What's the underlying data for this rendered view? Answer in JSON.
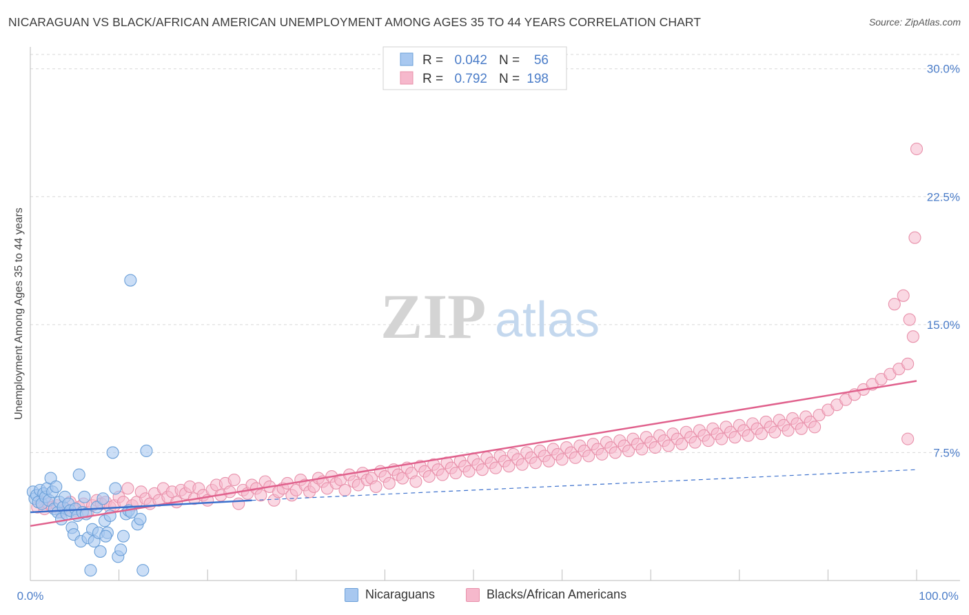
{
  "title": "NICARAGUAN VS BLACK/AFRICAN AMERICAN UNEMPLOYMENT AMONG AGES 35 TO 44 YEARS CORRELATION CHART",
  "source": "Source: ZipAtlas.com",
  "watermark": {
    "zip": "ZIP",
    "atlas": "atlas"
  },
  "colors": {
    "blue_fill": "#a8c8f0",
    "blue_stroke": "#6a9fd8",
    "blue_line": "#3a6fcc",
    "pink_fill": "#f6b8cc",
    "pink_stroke": "#e890aa",
    "pink_line": "#e0608c",
    "axis_label": "#4a7cc8",
    "grid": "#d8d8d8"
  },
  "legend": {
    "rows": [
      {
        "r_label": "R =",
        "r_value": "0.042",
        "n_label": "N =",
        "n_value": "56"
      },
      {
        "r_label": "R =",
        "r_value": "0.792",
        "n_label": "N =",
        "n_value": "198"
      }
    ]
  },
  "bottom_legend": [
    "Nicaraguans",
    "Blacks/African Americans"
  ],
  "chart_data": {
    "type": "scatter",
    "title": "NICARAGUAN VS BLACK/AFRICAN AMERICAN UNEMPLOYMENT AMONG AGES 35 TO 44 YEARS CORRELATION CHART",
    "xlabel": "",
    "ylabel": "Unemployment Among Ages 35 to 44 years",
    "xlim": [
      0,
      100
    ],
    "ylim": [
      0,
      31
    ],
    "x_tick_labels": [
      "0.0%",
      "100.0%"
    ],
    "y_ticks": [
      7.5,
      15.0,
      22.5,
      30.0
    ],
    "y_tick_labels": [
      "7.5%",
      "15.0%",
      "22.5%",
      "30.0%"
    ],
    "grid": true,
    "legend_position": "top-center",
    "series": [
      {
        "name": "Nicaraguans",
        "r": 0.042,
        "n": 56,
        "trend_solid": [
          [
            0,
            4.0
          ],
          [
            25,
            4.7
          ]
        ],
        "trend_dashed": [
          [
            25,
            4.7
          ],
          [
            100,
            6.5
          ]
        ],
        "points": [
          [
            0.3,
            5.2
          ],
          [
            0.5,
            4.8
          ],
          [
            0.7,
            5.0
          ],
          [
            0.9,
            4.6
          ],
          [
            1.1,
            5.3
          ],
          [
            1.3,
            4.5
          ],
          [
            1.5,
            5.1
          ],
          [
            1.7,
            4.9
          ],
          [
            1.9,
            5.4
          ],
          [
            2.1,
            4.7
          ],
          [
            2.3,
            6.0
          ],
          [
            2.5,
            5.2
          ],
          [
            2.7,
            4.2
          ],
          [
            2.9,
            5.5
          ],
          [
            3.1,
            4.0
          ],
          [
            3.3,
            4.6
          ],
          [
            3.5,
            3.6
          ],
          [
            3.7,
            4.3
          ],
          [
            3.9,
            4.9
          ],
          [
            4.1,
            3.9
          ],
          [
            4.3,
            4.5
          ],
          [
            4.5,
            4.1
          ],
          [
            4.7,
            3.1
          ],
          [
            4.9,
            2.7
          ],
          [
            5.1,
            4.2
          ],
          [
            5.3,
            3.8
          ],
          [
            5.5,
            6.2
          ],
          [
            5.7,
            2.3
          ],
          [
            5.9,
            4.0
          ],
          [
            6.1,
            4.9
          ],
          [
            6.3,
            3.9
          ],
          [
            6.5,
            2.5
          ],
          [
            6.8,
            0.6
          ],
          [
            7.0,
            3.0
          ],
          [
            7.2,
            2.3
          ],
          [
            7.5,
            4.3
          ],
          [
            7.7,
            2.8
          ],
          [
            7.9,
            1.7
          ],
          [
            8.2,
            4.8
          ],
          [
            8.4,
            3.5
          ],
          [
            8.7,
            2.8
          ],
          [
            9.0,
            3.8
          ],
          [
            9.3,
            7.5
          ],
          [
            9.6,
            5.4
          ],
          [
            9.9,
            1.4
          ],
          [
            10.2,
            1.8
          ],
          [
            10.5,
            2.6
          ],
          [
            10.8,
            3.9
          ],
          [
            11.1,
            4.1
          ],
          [
            11.4,
            4.0
          ],
          [
            12.1,
            3.3
          ],
          [
            12.4,
            3.6
          ],
          [
            12.7,
            0.6
          ],
          [
            13.1,
            7.6
          ],
          [
            11.3,
            17.6
          ],
          [
            8.5,
            2.6
          ]
        ]
      },
      {
        "name": "Blacks/African Americans",
        "r": 0.792,
        "n": 198,
        "trend": [
          [
            0,
            3.2
          ],
          [
            100,
            11.7
          ]
        ],
        "points": [
          [
            0.8,
            4.3
          ],
          [
            1.2,
            4.6
          ],
          [
            1.6,
            4.2
          ],
          [
            2.0,
            4.5
          ],
          [
            2.5,
            4.3
          ],
          [
            3.0,
            4.4
          ],
          [
            3.5,
            4.0
          ],
          [
            4.0,
            4.2
          ],
          [
            4.5,
            4.6
          ],
          [
            5.0,
            4.1
          ],
          [
            5.5,
            4.3
          ],
          [
            6.0,
            4.5
          ],
          [
            6.5,
            4.0
          ],
          [
            7.0,
            4.4
          ],
          [
            7.5,
            4.7
          ],
          [
            8.0,
            4.5
          ],
          [
            8.5,
            4.6
          ],
          [
            9.0,
            4.3
          ],
          [
            9.5,
            4.4
          ],
          [
            10.0,
            4.9
          ],
          [
            10.5,
            4.6
          ],
          [
            11.0,
            5.4
          ],
          [
            11.5,
            4.4
          ],
          [
            12.0,
            4.6
          ],
          [
            12.5,
            5.2
          ],
          [
            13.0,
            4.8
          ],
          [
            13.5,
            4.5
          ],
          [
            14.0,
            5.1
          ],
          [
            14.5,
            4.7
          ],
          [
            15.0,
            5.4
          ],
          [
            15.5,
            4.9
          ],
          [
            16.0,
            5.2
          ],
          [
            16.5,
            4.6
          ],
          [
            17.0,
            5.3
          ],
          [
            17.5,
            5.1
          ],
          [
            18.0,
            5.5
          ],
          [
            18.5,
            4.8
          ],
          [
            19.0,
            5.4
          ],
          [
            19.5,
            5.0
          ],
          [
            20.0,
            4.7
          ],
          [
            20.5,
            5.3
          ],
          [
            21.0,
            5.6
          ],
          [
            21.5,
            5.0
          ],
          [
            22.0,
            5.7
          ],
          [
            22.5,
            5.2
          ],
          [
            23.0,
            5.9
          ],
          [
            23.5,
            4.5
          ],
          [
            24.0,
            5.3
          ],
          [
            24.5,
            5.1
          ],
          [
            25.0,
            5.6
          ],
          [
            25.5,
            5.4
          ],
          [
            26.0,
            5.0
          ],
          [
            26.5,
            5.8
          ],
          [
            27.0,
            5.5
          ],
          [
            27.5,
            4.7
          ],
          [
            28.0,
            5.2
          ],
          [
            28.5,
            5.4
          ],
          [
            29.0,
            5.7
          ],
          [
            29.5,
            5.0
          ],
          [
            30.0,
            5.3
          ],
          [
            30.5,
            5.9
          ],
          [
            31.0,
            5.6
          ],
          [
            31.5,
            5.2
          ],
          [
            32.0,
            5.5
          ],
          [
            32.5,
            6.0
          ],
          [
            33.0,
            5.8
          ],
          [
            33.5,
            5.4
          ],
          [
            34.0,
            6.1
          ],
          [
            34.5,
            5.7
          ],
          [
            35.0,
            5.9
          ],
          [
            35.5,
            5.3
          ],
          [
            36.0,
            6.2
          ],
          [
            36.5,
            5.8
          ],
          [
            37.0,
            5.6
          ],
          [
            37.5,
            6.3
          ],
          [
            38.0,
            5.9
          ],
          [
            38.5,
            6.0
          ],
          [
            39.0,
            5.5
          ],
          [
            39.5,
            6.4
          ],
          [
            40.0,
            6.1
          ],
          [
            40.5,
            5.7
          ],
          [
            41.0,
            6.5
          ],
          [
            41.5,
            6.2
          ],
          [
            42.0,
            6.0
          ],
          [
            42.5,
            6.6
          ],
          [
            43.0,
            6.3
          ],
          [
            43.5,
            5.8
          ],
          [
            44.0,
            6.7
          ],
          [
            44.5,
            6.4
          ],
          [
            45.0,
            6.1
          ],
          [
            45.5,
            6.8
          ],
          [
            46.0,
            6.5
          ],
          [
            46.5,
            6.2
          ],
          [
            47.0,
            6.9
          ],
          [
            47.5,
            6.6
          ],
          [
            48.0,
            6.3
          ],
          [
            48.5,
            7.0
          ],
          [
            49.0,
            6.7
          ],
          [
            49.5,
            6.4
          ],
          [
            50.0,
            7.1
          ],
          [
            50.5,
            6.8
          ],
          [
            51.0,
            6.5
          ],
          [
            51.5,
            7.2
          ],
          [
            52.0,
            6.9
          ],
          [
            52.5,
            6.6
          ],
          [
            53.0,
            7.3
          ],
          [
            53.5,
            7.0
          ],
          [
            54.0,
            6.7
          ],
          [
            54.5,
            7.4
          ],
          [
            55.0,
            7.1
          ],
          [
            55.5,
            6.8
          ],
          [
            56.0,
            7.5
          ],
          [
            56.5,
            7.2
          ],
          [
            57.0,
            6.9
          ],
          [
            57.5,
            7.6
          ],
          [
            58.0,
            7.3
          ],
          [
            58.5,
            7.0
          ],
          [
            59.0,
            7.7
          ],
          [
            59.5,
            7.4
          ],
          [
            60.0,
            7.1
          ],
          [
            60.5,
            7.8
          ],
          [
            61.0,
            7.5
          ],
          [
            61.5,
            7.2
          ],
          [
            62.0,
            7.9
          ],
          [
            62.5,
            7.6
          ],
          [
            63.0,
            7.3
          ],
          [
            63.5,
            8.0
          ],
          [
            64.0,
            7.7
          ],
          [
            64.5,
            7.4
          ],
          [
            65.0,
            8.1
          ],
          [
            65.5,
            7.8
          ],
          [
            66.0,
            7.5
          ],
          [
            66.5,
            8.2
          ],
          [
            67.0,
            7.9
          ],
          [
            67.5,
            7.6
          ],
          [
            68.0,
            8.3
          ],
          [
            68.5,
            8.0
          ],
          [
            69.0,
            7.7
          ],
          [
            69.5,
            8.4
          ],
          [
            70.0,
            8.1
          ],
          [
            70.5,
            7.8
          ],
          [
            71.0,
            8.5
          ],
          [
            71.5,
            8.2
          ],
          [
            72.0,
            7.9
          ],
          [
            72.5,
            8.6
          ],
          [
            73.0,
            8.3
          ],
          [
            73.5,
            8.0
          ],
          [
            74.0,
            8.7
          ],
          [
            74.5,
            8.4
          ],
          [
            75.0,
            8.1
          ],
          [
            75.5,
            8.8
          ],
          [
            76.0,
            8.5
          ],
          [
            76.5,
            8.2
          ],
          [
            77.0,
            8.9
          ],
          [
            77.5,
            8.6
          ],
          [
            78.0,
            8.3
          ],
          [
            78.5,
            9.0
          ],
          [
            79.0,
            8.7
          ],
          [
            79.5,
            8.4
          ],
          [
            80.0,
            9.1
          ],
          [
            80.5,
            8.8
          ],
          [
            81.0,
            8.5
          ],
          [
            81.5,
            9.2
          ],
          [
            82.0,
            8.9
          ],
          [
            82.5,
            8.6
          ],
          [
            83.0,
            9.3
          ],
          [
            83.5,
            9.0
          ],
          [
            84.0,
            8.7
          ],
          [
            84.5,
            9.4
          ],
          [
            85.0,
            9.1
          ],
          [
            85.5,
            8.8
          ],
          [
            86.0,
            9.5
          ],
          [
            86.5,
            9.2
          ],
          [
            87.0,
            8.9
          ],
          [
            87.5,
            9.6
          ],
          [
            88.0,
            9.3
          ],
          [
            88.5,
            9.0
          ],
          [
            89.0,
            9.7
          ],
          [
            90.0,
            10.0
          ],
          [
            91.0,
            10.3
          ],
          [
            92.0,
            10.6
          ],
          [
            93.0,
            10.9
          ],
          [
            94.0,
            11.2
          ],
          [
            95.0,
            11.5
          ],
          [
            96.0,
            11.8
          ],
          [
            97.0,
            12.1
          ],
          [
            98.0,
            12.4
          ],
          [
            99.0,
            12.7
          ],
          [
            97.5,
            16.2
          ],
          [
            98.5,
            16.7
          ],
          [
            99.2,
            15.3
          ],
          [
            99.6,
            14.3
          ],
          [
            99.8,
            20.1
          ],
          [
            100.0,
            25.3
          ],
          [
            99.0,
            8.3
          ]
        ]
      }
    ]
  }
}
